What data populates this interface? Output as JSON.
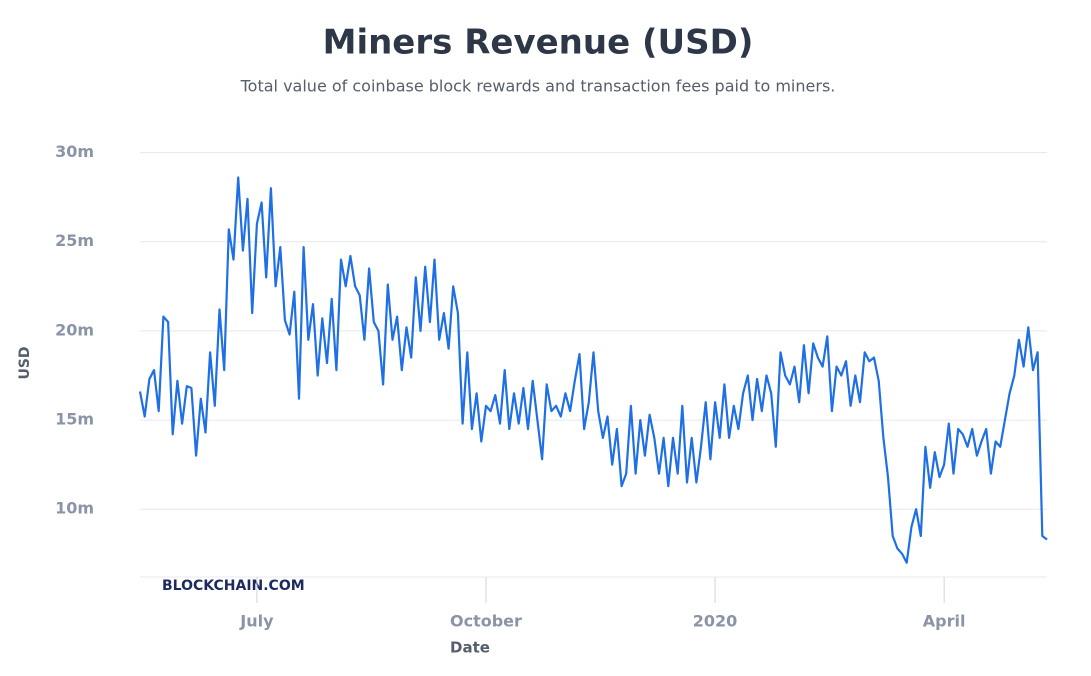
{
  "chart_data": {
    "type": "line",
    "title": "Miners Revenue (USD)",
    "subtitle": "Total value of coinbase block rewards and transaction fees paid to miners.",
    "x_label": "Date",
    "y_label": "USD",
    "watermark": "BLOCKCHAIN.COM",
    "categories": [
      null,
      null,
      null,
      null,
      null,
      null,
      null,
      null,
      null,
      null,
      null,
      null,
      null,
      null,
      null,
      null,
      null,
      null,
      null,
      null,
      null,
      null,
      null,
      null,
      null,
      "July",
      null,
      null,
      null,
      null,
      null,
      null,
      null,
      null,
      null,
      null,
      null,
      null,
      null,
      null,
      null,
      null,
      null,
      null,
      null,
      null,
      null,
      null,
      null,
      null,
      null,
      null,
      null,
      null,
      null,
      null,
      null,
      null,
      null,
      null,
      null,
      null,
      null,
      null,
      null,
      null,
      null,
      null,
      null,
      null,
      null,
      null,
      null,
      null,
      "October",
      null,
      null,
      null,
      null,
      null,
      null,
      null,
      null,
      null,
      null,
      null,
      null,
      null,
      null,
      null,
      null,
      null,
      null,
      null,
      null,
      null,
      null,
      null,
      null,
      null,
      null,
      null,
      null,
      null,
      null,
      null,
      null,
      null,
      null,
      null,
      null,
      null,
      null,
      null,
      null,
      null,
      null,
      null,
      null,
      null,
      null,
      null,
      null,
      "2020",
      null,
      null,
      null,
      null,
      null,
      null,
      null,
      null,
      null,
      null,
      null,
      null,
      null,
      null,
      null,
      null,
      null,
      null,
      null,
      null,
      null,
      null,
      null,
      null,
      null,
      null,
      null,
      null,
      null,
      null,
      null,
      null,
      null,
      null,
      null,
      null,
      null,
      null,
      null,
      null,
      null,
      null,
      null,
      null,
      null,
      null,
      null,
      null,
      "April",
      null,
      null,
      null,
      null,
      null,
      null,
      null,
      null,
      null,
      null,
      null,
      null,
      null,
      null,
      null,
      null,
      null,
      null,
      null,
      null,
      null,
      null
    ],
    "series": [
      {
        "name": "USD",
        "color": "#1f6fe5",
        "values": [
          16.6,
          15.2,
          17.3,
          17.8,
          15.5,
          20.8,
          20.5,
          14.2,
          17.2,
          14.8,
          16.9,
          16.8,
          13.0,
          16.2,
          14.3,
          18.8,
          15.8,
          21.2,
          17.8,
          25.7,
          24.0,
          28.6,
          24.5,
          27.4,
          21.0,
          26.0,
          27.2,
          23.0,
          28.0,
          22.5,
          24.7,
          20.6,
          19.8,
          22.2,
          16.2,
          24.7,
          19.5,
          21.5,
          17.5,
          20.7,
          18.2,
          21.8,
          17.8,
          24.0,
          22.5,
          24.2,
          22.5,
          22.0,
          19.5,
          23.5,
          20.5,
          20.0,
          17.0,
          22.6,
          19.5,
          20.8,
          17.8,
          20.2,
          18.5,
          23.0,
          20.0,
          23.6,
          20.5,
          24.0,
          19.5,
          21.0,
          19.0,
          22.5,
          21.0,
          14.8,
          18.8,
          14.5,
          16.5,
          13.8,
          15.8,
          15.5,
          16.4,
          14.8,
          17.8,
          14.5,
          16.5,
          14.8,
          16.8,
          14.5,
          17.2,
          15.0,
          12.8,
          17.0,
          15.5,
          15.8,
          15.2,
          16.5,
          15.5,
          17.2,
          18.7,
          14.5,
          16.0,
          18.8,
          15.5,
          14.0,
          15.2,
          12.5,
          14.5,
          11.3,
          12.0,
          15.8,
          12.0,
          15.0,
          13.0,
          15.3,
          14.0,
          12.0,
          14.0,
          11.3,
          14.0,
          12.0,
          15.8,
          11.5,
          14.0,
          11.5,
          13.5,
          16.0,
          12.8,
          16.0,
          14.0,
          17.0,
          14.0,
          15.8,
          14.5,
          16.5,
          17.5,
          15.0,
          17.3,
          15.5,
          17.5,
          16.5,
          13.5,
          18.8,
          17.5,
          17.0,
          18.0,
          16.0,
          19.2,
          16.5,
          19.3,
          18.5,
          18.0,
          19.7,
          15.5,
          18.0,
          17.5,
          18.3,
          15.8,
          17.5,
          16.0,
          18.8,
          18.3,
          18.5,
          17.2,
          14.0,
          11.8,
          8.5,
          7.8,
          7.5,
          7.0,
          9.0,
          10.0,
          8.5,
          13.5,
          11.2,
          13.2,
          11.8,
          12.5,
          14.8,
          12.0,
          14.5,
          14.2,
          13.5,
          14.5,
          13.0,
          13.8,
          14.5,
          12.0,
          13.8,
          13.5,
          15.0,
          16.5,
          17.5,
          19.5,
          18.0,
          20.2,
          17.8,
          18.8,
          8.5,
          8.3
        ]
      }
    ],
    "ylim": [
      6.2,
      30.2
    ],
    "yticks": [
      {
        "value": 10,
        "label": "10m"
      },
      {
        "value": 15,
        "label": "15m"
      },
      {
        "value": 20,
        "label": "20m"
      },
      {
        "value": 25,
        "label": "25m"
      },
      {
        "value": 30,
        "label": "30m"
      }
    ],
    "grid": true
  }
}
